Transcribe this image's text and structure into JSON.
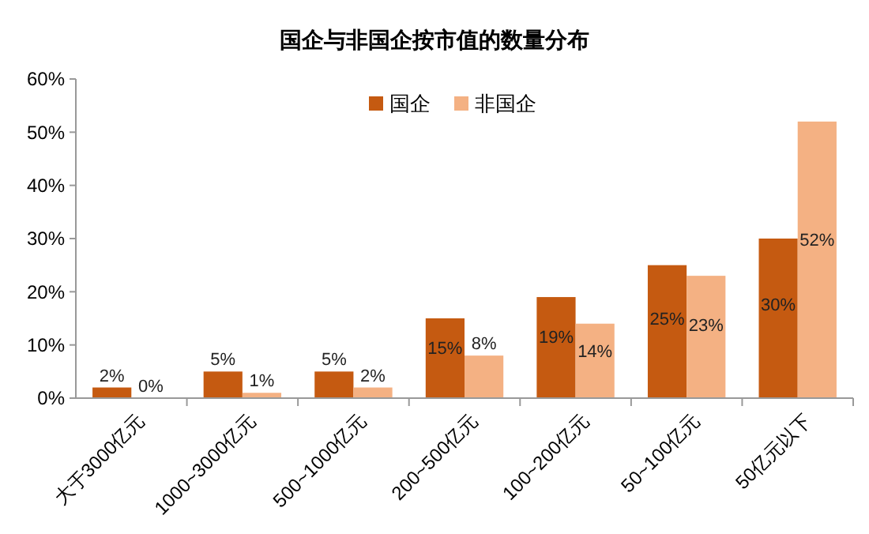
{
  "chart_data": {
    "type": "bar",
    "title": "国企与非国企按市值的数量分布",
    "categories": [
      "大于3000亿元",
      "1000~3000亿元",
      "500~1000亿元",
      "200~500亿元",
      "100~200亿元",
      "50~100亿元",
      "50亿元以下"
    ],
    "series": [
      {
        "name": "国企",
        "color": "#c55a11",
        "values": [
          2,
          5,
          5,
          15,
          19,
          25,
          30
        ],
        "value_labels": [
          "2%",
          "5%",
          "5%",
          "15%",
          "19%",
          "25%",
          "30%"
        ]
      },
      {
        "name": "非国企",
        "color": "#f4b183",
        "values": [
          0,
          1,
          2,
          8,
          14,
          23,
          52
        ],
        "value_labels": [
          "0%",
          "1%",
          "2%",
          "8%",
          "14%",
          "23%",
          "52%"
        ]
      }
    ],
    "ylim": [
      0,
      60
    ],
    "yticks": [
      {
        "value": 0,
        "label": "0%"
      },
      {
        "value": 10,
        "label": "10%"
      },
      {
        "value": 20,
        "label": "20%"
      },
      {
        "value": 30,
        "label": "30%"
      },
      {
        "value": 40,
        "label": "40%"
      },
      {
        "value": 50,
        "label": "50%"
      },
      {
        "value": 60,
        "label": "60%"
      }
    ],
    "legend": "top",
    "grid": false
  }
}
